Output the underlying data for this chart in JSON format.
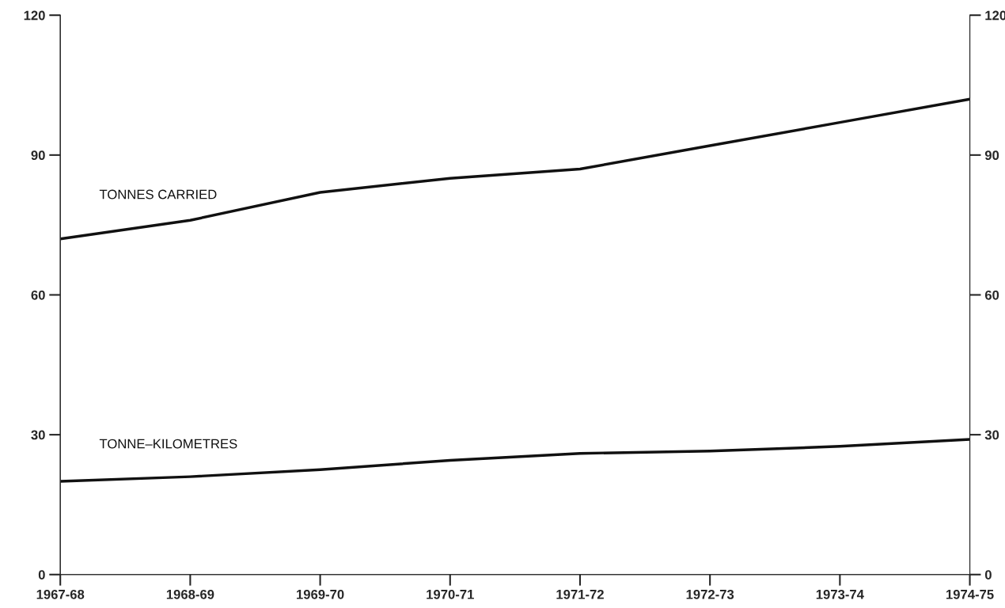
{
  "chart_data": {
    "type": "line",
    "categories": [
      "1967-68",
      "1968-69",
      "1969-70",
      "1970-71",
      "1971-72",
      "1972-73",
      "1973-74",
      "1974-75"
    ],
    "series": [
      {
        "name": "TONNES CARRIED",
        "color": "#111111",
        "values": [
          72,
          76,
          82,
          85,
          87,
          92,
          97,
          102
        ]
      },
      {
        "name": "TONNE–KILOMETRES",
        "color": "#111111",
        "values": [
          20,
          21,
          22.5,
          24.5,
          26,
          26.5,
          27.5,
          29
        ]
      }
    ],
    "ylim": [
      0,
      120
    ],
    "yticks": [
      0,
      30,
      60,
      90,
      120
    ],
    "y2lim": [
      0,
      120
    ],
    "y2ticks": [
      0,
      30,
      60,
      90,
      120
    ],
    "grid": false,
    "legend": false,
    "marker": "none",
    "line_style": "solid"
  }
}
